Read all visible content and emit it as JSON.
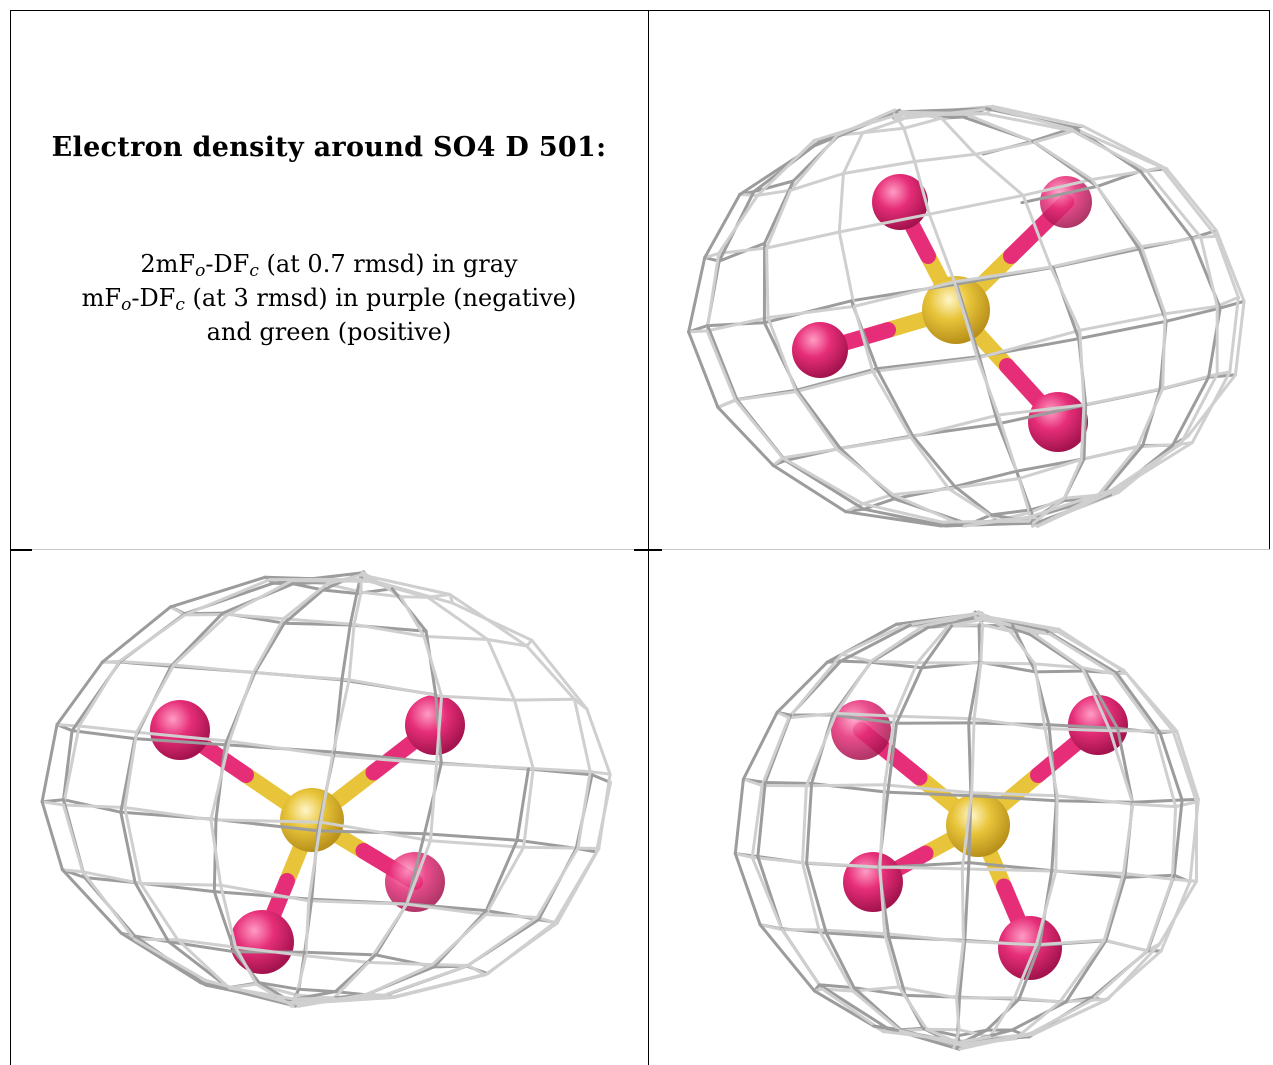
{
  "title": "Electron density around SO4 D 501:",
  "legend": {
    "line1": {
      "a": "2mF",
      "b": "o",
      "c": "-DF",
      "d": "c",
      "e": " (at 0.7 rmsd) in gray"
    },
    "line2": {
      "a": "mF",
      "b": "o",
      "c": "-DF",
      "d": "c",
      "e": " (at 3 rmsd) in purple (negative)"
    },
    "line3": "and green (positive)"
  },
  "colors": {
    "mesh": "#b5b5b5",
    "sulfur": "#e8c43a",
    "oxygen": "#e62e78",
    "border": "#000000"
  },
  "views": [
    {
      "name": "view-top-right",
      "oxygen_atoms": 4,
      "sulfur_atoms": 1
    },
    {
      "name": "view-bottom-left",
      "oxygen_atoms": 4,
      "sulfur_atoms": 1
    },
    {
      "name": "view-bottom-right",
      "oxygen_atoms": 4,
      "sulfur_atoms": 1
    }
  ]
}
